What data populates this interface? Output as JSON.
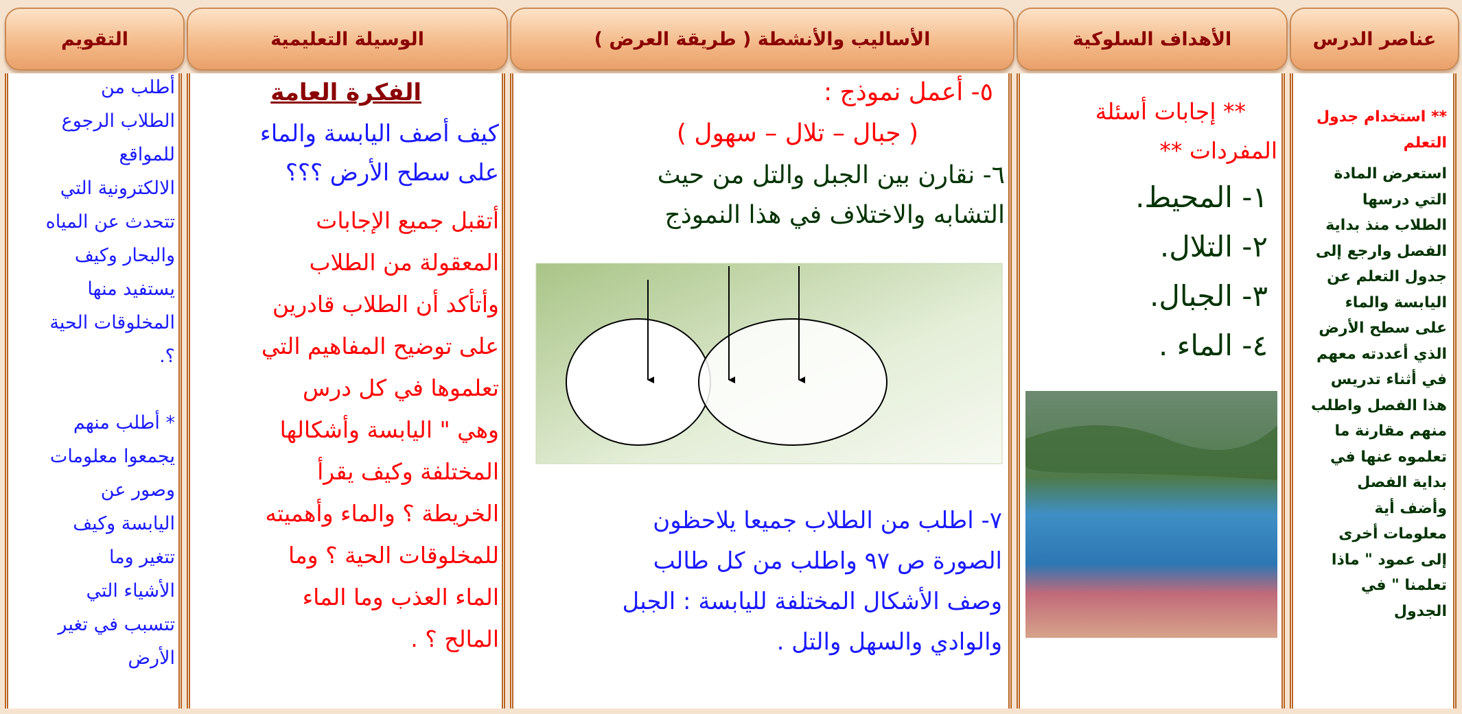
{
  "header": {
    "columns": [
      "عناصر الدرس",
      "الأهداف السلوكية",
      "الأساليب والأنشطة ( طريقة العرض )",
      "الوسيلة التعليمية",
      "التقويم"
    ]
  },
  "lesson_elements": {
    "heading_lines": [
      "** استخدام جدول",
      "التعلم"
    ],
    "lines": [
      "استعرض المادة",
      "التي درسها",
      "الطلاب منذ بداية",
      "الفصل وارجع إلى",
      "جدول التعلم عن",
      "اليابسة والماء",
      "على سطح الأرض",
      "الذي أعددته معهم",
      "في أثناء تدريس",
      "هذا الفصل واطلب",
      "منهم مقارنة ما",
      "تعلموه عنها في",
      "بداية الفصل",
      "وأضف أية",
      "معلومات أخرى",
      "إلى عمود \" ماذا",
      "تعلمنا \" في",
      "الجدول"
    ]
  },
  "objectives": {
    "heading_lines": [
      "** إجابات أسئلة",
      "المفردات **"
    ],
    "items": [
      "١- المحيط.",
      "٢- التلال.",
      "٣- الجبال.",
      "٤- الماء ."
    ]
  },
  "methods": {
    "step5": [
      "٥- أعمل نموذج :",
      "( جبال – تلال – سهول )"
    ],
    "step6": [
      "٦-  نقارن بين الجبل والتل من حيث",
      "التشابه والاختلاف في هذا النموذج"
    ],
    "step7": [
      "٧- اطلب من الطلاب جميعا يلاحظون",
      "الصورة ص ٩٧ واطلب من كل طالب",
      "وصف الأشكال المختلفة لليابسة : الجبل",
      "والوادي والسهل والتل ."
    ]
  },
  "means": {
    "title": "الفكرة العامة",
    "question": [
      "كيف أصف اليابسة والماء",
      "على سطح الأرض ؟؟؟"
    ],
    "paragraph": [
      "أتقبل جميع الإجابات",
      "المعقولة من الطلاب",
      "وأتأكد أن الطلاب قادرين",
      "على توضيح المفاهيم التي",
      "تعلموها في كل درس",
      "وهي \" اليابسة وأشكالها",
      "المختلفة وكيف يقرأ",
      "الخريطة ؟ والماء وأهميته",
      "للمخلوقات الحية ؟ وما",
      "الماء العذب وما الماء",
      "المالح ؟  ."
    ]
  },
  "evaluation": {
    "part1": [
      "أطلب من",
      "الطلاب الرجوع",
      "للمواقع",
      "الالكترونية التي",
      "تتحدث عن المياه",
      "والبحار وكيف",
      "يستفيد منها",
      "المخلوقات الحية",
      "؟."
    ],
    "part2": [
      "* أطلب منهم",
      "يجمعوا معلومات",
      "وصور عن",
      "اليابسة وكيف",
      "تتغير وما",
      "الأشياء التي",
      "تتسبب في تغير",
      "الأرض"
    ]
  }
}
